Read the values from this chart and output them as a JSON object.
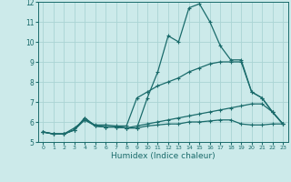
{
  "xlabel": "Humidex (Indice chaleur)",
  "background_color": "#cceaea",
  "grid_color": "#aad4d4",
  "line_color": "#1a6b6b",
  "x_values": [
    0,
    1,
    2,
    3,
    4,
    5,
    6,
    7,
    8,
    9,
    10,
    11,
    12,
    13,
    14,
    15,
    16,
    17,
    18,
    19,
    20,
    21,
    22,
    23
  ],
  "series1": [
    5.5,
    5.4,
    5.4,
    5.6,
    6.2,
    5.8,
    5.75,
    5.75,
    5.7,
    5.7,
    7.2,
    8.5,
    10.3,
    10.0,
    11.7,
    11.9,
    11.0,
    9.8,
    9.1,
    9.1,
    7.5,
    7.2,
    6.5,
    5.9
  ],
  "series2": [
    5.5,
    5.4,
    5.4,
    5.7,
    6.1,
    5.85,
    5.85,
    5.8,
    5.8,
    7.2,
    7.5,
    7.8,
    8.0,
    8.2,
    8.5,
    8.7,
    8.9,
    9.0,
    9.0,
    9.0,
    7.5,
    7.2,
    6.5,
    5.9
  ],
  "series3": [
    5.5,
    5.4,
    5.4,
    5.6,
    6.2,
    5.8,
    5.75,
    5.75,
    5.7,
    5.8,
    5.9,
    6.0,
    6.1,
    6.2,
    6.3,
    6.4,
    6.5,
    6.6,
    6.7,
    6.8,
    6.9,
    6.9,
    6.5,
    5.9
  ],
  "series4": [
    5.5,
    5.4,
    5.4,
    5.6,
    6.1,
    5.8,
    5.75,
    5.75,
    5.7,
    5.7,
    5.8,
    5.85,
    5.9,
    5.9,
    6.0,
    6.0,
    6.05,
    6.1,
    6.1,
    5.9,
    5.85,
    5.85,
    5.9,
    5.9
  ],
  "ylim": [
    5,
    12
  ],
  "xlim": [
    -0.5,
    23.5
  ],
  "yticks": [
    5,
    6,
    7,
    8,
    9,
    10,
    11,
    12
  ],
  "xticks": [
    0,
    1,
    2,
    3,
    4,
    5,
    6,
    7,
    8,
    9,
    10,
    11,
    12,
    13,
    14,
    15,
    16,
    17,
    18,
    19,
    20,
    21,
    22,
    23
  ]
}
